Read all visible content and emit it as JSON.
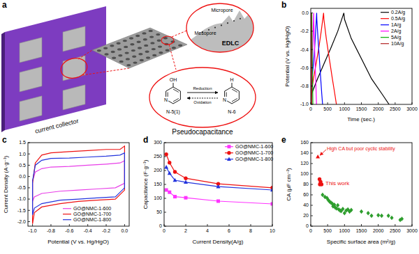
{
  "diagram": {
    "title": "a",
    "current_collector": "current collector",
    "edlc": {
      "label": "EDLC",
      "micropore": "Micropore",
      "mesopore": "Mesopore"
    },
    "pseudocapacitance": {
      "label": "Pseudocapacitance",
      "reactant": "N-5(1)",
      "product": "N-6",
      "forward": "Reduction",
      "backward": "Oxidation",
      "atoms": {
        "nitrogen": "N",
        "hydroxyl": "OH",
        "hydrogen": "H"
      }
    }
  },
  "chart_data": [
    {
      "type": "line",
      "title": "b",
      "xlabel": "Time (sec.)",
      "ylabel": "Potential (V vs. Hg/HgO)",
      "xlim": [
        0,
        3000
      ],
      "xticks": [
        0,
        500,
        1000,
        1500,
        2000,
        2500,
        3000
      ],
      "ylim": [
        -1.0,
        0.05
      ],
      "yticks": [
        {
          "value": -1.0,
          "label": "-1.0"
        },
        -0.8,
        -0.6,
        -0.4,
        -0.2,
        {
          "value": 0,
          "label": "0.0"
        }
      ],
      "grid": false,
      "legend": "upper right",
      "series": [
        {
          "name": "0.2A/g",
          "color": "#000000",
          "line_style": "solid",
          "x": [
            0,
            30,
            200,
            400,
            600,
            800,
            980,
            1000,
            1200,
            1500,
            1800,
            2100,
            2320
          ],
          "values": [
            -1.0,
            -0.88,
            -0.72,
            -0.55,
            -0.38,
            -0.2,
            0.0,
            -0.07,
            -0.28,
            -0.5,
            -0.72,
            -0.88,
            -1.0
          ]
        },
        {
          "name": "0.5A/g",
          "color": "#ff0000",
          "line_style": "solid",
          "x": [
            0,
            15,
            80,
            160,
            240,
            310,
            380,
            390,
            460,
            550,
            640,
            710,
            760
          ],
          "values": [
            -1.0,
            -0.88,
            -0.72,
            -0.55,
            -0.38,
            -0.2,
            0.0,
            -0.07,
            -0.28,
            -0.5,
            -0.72,
            -0.88,
            -1.0
          ]
        },
        {
          "name": "1A/g",
          "color": "#0000ff",
          "line_style": "solid",
          "x": [
            0,
            8,
            40,
            80,
            115,
            145,
            175,
            180,
            215,
            255,
            295,
            325,
            350
          ],
          "values": [
            -1.0,
            -0.88,
            -0.72,
            -0.55,
            -0.38,
            -0.2,
            0.0,
            -0.07,
            -0.28,
            -0.5,
            -0.72,
            -0.88,
            -1.0
          ]
        },
        {
          "name": "2A/g",
          "color": "#ff00ff",
          "line_style": "solid",
          "x": [
            0,
            4,
            20,
            40,
            58,
            72,
            85,
            88,
            105,
            125,
            145,
            160,
            170
          ],
          "values": [
            -1.0,
            -0.88,
            -0.72,
            -0.55,
            -0.38,
            -0.2,
            0.0,
            -0.07,
            -0.28,
            -0.5,
            -0.72,
            -0.88,
            -1.0
          ]
        },
        {
          "name": "5A/g",
          "color": "#00aa00",
          "line_style": "solid",
          "x": [
            0,
            2,
            8,
            15,
            22,
            30,
            32,
            40,
            50,
            62
          ],
          "values": [
            -1.0,
            -0.88,
            -0.7,
            -0.5,
            -0.3,
            0.0,
            -0.08,
            -0.35,
            -0.65,
            -1.0
          ]
        },
        {
          "name": "10A/g",
          "color": "#b22222",
          "line_style": "solid",
          "x": [
            0,
            1,
            4,
            7,
            14,
            15,
            20,
            28
          ],
          "values": [
            -1.0,
            -0.88,
            -0.7,
            -0.45,
            0.0,
            -0.08,
            -0.4,
            -1.0
          ]
        }
      ]
    },
    {
      "type": "line",
      "title": "c",
      "xlabel": "Potential (V vs. Hg/HgO)",
      "ylabel": "Current Density (A·g⁻¹)",
      "xlim": [
        -1.05,
        0.05
      ],
      "xticks": [
        {
          "value": -1.0,
          "label": "-1.0"
        },
        -0.8,
        -0.6,
        -0.4,
        -0.2,
        {
          "value": 0,
          "label": "0.0"
        }
      ],
      "ylim": [
        -2.2,
        1.5
      ],
      "yticks": [
        {
          "value": -2,
          "label": "-2.0"
        },
        -1.5,
        {
          "value": -1,
          "label": "-1.0"
        },
        -0.5,
        {
          "value": 0,
          "label": "0.0"
        },
        0.5,
        {
          "value": 1,
          "label": "1.0"
        },
        1.5
      ],
      "grid": false,
      "legend": "lower right",
      "x": [
        -1.0,
        -0.97,
        -0.9,
        -0.8,
        -0.6,
        -0.4,
        -0.2,
        -0.05,
        0.0,
        0.0,
        -0.1,
        -0.3,
        -0.5,
        -0.7,
        -0.9,
        -0.98,
        -1.0,
        -1.0
      ],
      "series": [
        {
          "name": "GO@NMC-1-600",
          "color": "#e83ee8",
          "line_style": "solid",
          "values": [
            -0.2,
            0.2,
            0.35,
            0.42,
            0.45,
            0.5,
            0.55,
            0.6,
            0.7,
            -0.3,
            -0.5,
            -0.55,
            -0.6,
            -0.65,
            -0.75,
            -0.9,
            -1.1,
            -0.2
          ]
        },
        {
          "name": "GO@NMC-1-700",
          "color": "#ee1111",
          "line_style": "solid",
          "values": [
            -0.3,
            0.6,
            0.95,
            1.05,
            1.1,
            1.15,
            1.2,
            1.2,
            1.35,
            -0.6,
            -1.0,
            -1.05,
            -1.1,
            -1.2,
            -1.35,
            -1.6,
            -2.1,
            -0.3
          ]
        },
        {
          "name": "GO@NMC-1-800",
          "color": "#2233dd",
          "line_style": "solid",
          "values": [
            -0.2,
            0.5,
            0.72,
            0.8,
            0.82,
            0.86,
            0.9,
            0.95,
            1.05,
            -0.5,
            -0.9,
            -0.95,
            -1.0,
            -1.05,
            -1.2,
            -1.4,
            -1.7,
            -0.2
          ]
        }
      ]
    },
    {
      "type": "line",
      "title": "d",
      "xlabel": "Current Density(A/g)",
      "ylabel": "Capacitance (F·g⁻¹)",
      "xlim": [
        0,
        10
      ],
      "xticks": [
        0,
        2,
        4,
        6,
        8,
        10
      ],
      "ylim": [
        0,
        300
      ],
      "yticks": [
        0,
        50,
        100,
        150,
        200,
        250,
        300
      ],
      "grid": false,
      "legend": "upper right",
      "x": [
        0.2,
        0.5,
        1,
        2,
        5,
        10
      ],
      "series": [
        {
          "name": "GO@NMC-1-600",
          "color": "#ff33ff",
          "marker": "square",
          "line_style": "solid",
          "values": [
            130,
            122,
            106,
            102,
            90,
            80
          ]
        },
        {
          "name": "GO@NMC-1-700",
          "color": "#ee1111",
          "marker": "circle",
          "line_style": "solid",
          "values": [
            258,
            228,
            195,
            172,
            152,
            138
          ]
        },
        {
          "name": "GO@NMC-1-800",
          "color": "#2233dd",
          "marker": "triangle",
          "line_style": "solid",
          "values": [
            212,
            190,
            165,
            158,
            142,
            130
          ]
        }
      ]
    },
    {
      "type": "scatter",
      "title": "e",
      "xlabel": "Specific surface area (m²/g)",
      "ylabel": "CA (μF cm⁻²)",
      "xlim": [
        0,
        3000
      ],
      "xticks": [
        0,
        500,
        1000,
        1500,
        2000,
        2500,
        3000
      ],
      "ylim": [
        0,
        160
      ],
      "yticks": [
        0,
        20,
        40,
        60,
        80,
        100,
        120,
        140,
        160
      ],
      "grid": false,
      "annotations": [
        "High CA but poor cyclic stability",
        "This work"
      ],
      "series": [
        {
          "color": "#2e9e2e",
          "marker": "diamond",
          "x": [
            350,
            420,
            480,
            520,
            560,
            600,
            640,
            660,
            700,
            720,
            760,
            800,
            830,
            870,
            900,
            950,
            1000,
            1050,
            1100,
            1150,
            1200,
            1500,
            1700,
            1800,
            2000,
            2100,
            2300,
            2400,
            2650,
            2700
          ],
          "values": [
            60,
            56,
            54,
            50,
            47,
            45,
            43,
            38,
            41,
            36,
            34,
            40,
            32,
            30,
            29,
            33,
            25,
            30,
            32,
            28,
            31,
            28,
            25,
            20,
            21,
            20,
            20,
            16,
            12,
            14
          ]
        },
        {
          "color": "#ee1111",
          "marker": "circle",
          "x": [
            260,
            290,
            270,
            320
          ],
          "values": [
            90,
            85,
            80,
            80
          ]
        },
        {
          "color": "#ee1111",
          "marker": "triangle",
          "x": [
            210
          ],
          "values": [
            133
          ]
        }
      ]
    }
  ]
}
